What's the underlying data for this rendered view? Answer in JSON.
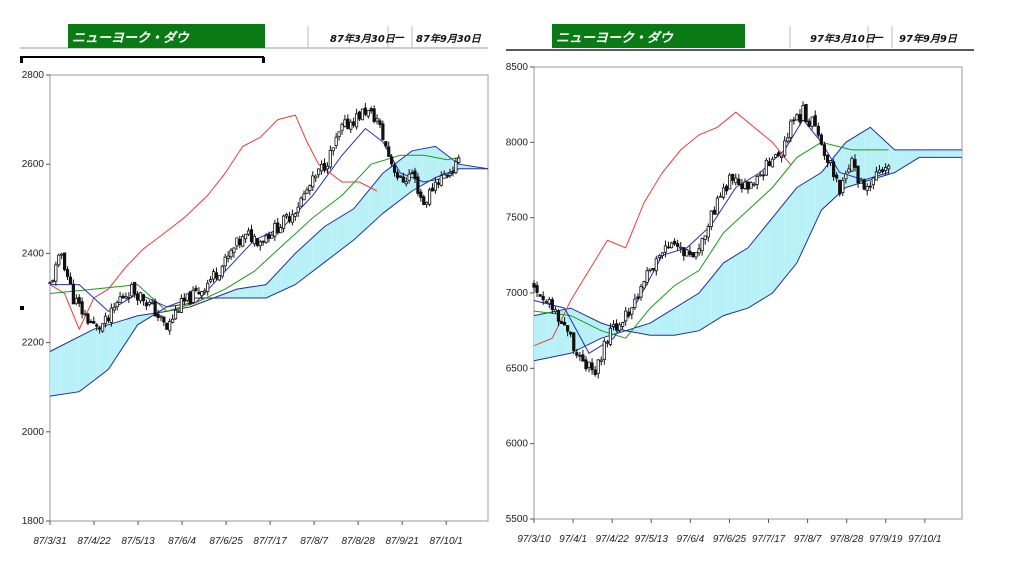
{
  "colors": {
    "tenkan": "#2030c8",
    "kijun": "#1a9a1a",
    "chikou": "#f03a3a",
    "cloud_bull": "#b8f0f8",
    "cloud_bear": "#fff5c0",
    "span_line": "#2030a0",
    "candle": "#111111",
    "header_green": "#0a7a14"
  },
  "chart_data": [
    {
      "type": "candlestick-ichimoku",
      "title": "ニューヨーク・ダウ",
      "date_from": "87年3月30日",
      "date_sep": "—",
      "date_to": "87年9月30日",
      "ylim": [
        1800,
        2800
      ],
      "yticks": [
        1800,
        2000,
        2200,
        2400,
        2600,
        2800
      ],
      "xticks": [
        "87/3/31",
        "87/4/22",
        "87/5/13",
        "87/6/4",
        "87/6/25",
        "87/7/17",
        "87/8/7",
        "87/8/28",
        "87/9/21",
        "87/10/1"
      ],
      "close_path": [
        [
          0,
          2330
        ],
        [
          4,
          2400
        ],
        [
          8,
          2300
        ],
        [
          12,
          2260
        ],
        [
          16,
          2230
        ],
        [
          20,
          2250
        ],
        [
          24,
          2300
        ],
        [
          28,
          2320
        ],
        [
          32,
          2300
        ],
        [
          36,
          2270
        ],
        [
          40,
          2230
        ],
        [
          44,
          2280
        ],
        [
          48,
          2300
        ],
        [
          52,
          2320
        ],
        [
          56,
          2350
        ],
        [
          60,
          2380
        ],
        [
          64,
          2420
        ],
        [
          68,
          2440
        ],
        [
          72,
          2430
        ],
        [
          76,
          2450
        ],
        [
          80,
          2470
        ],
        [
          84,
          2500
        ],
        [
          88,
          2540
        ],
        [
          92,
          2580
        ],
        [
          96,
          2620
        ],
        [
          100,
          2680
        ],
        [
          104,
          2700
        ],
        [
          108,
          2720
        ],
        [
          112,
          2700
        ],
        [
          116,
          2620
        ],
        [
          120,
          2560
        ],
        [
          124,
          2580
        ],
        [
          128,
          2510
        ],
        [
          132,
          2560
        ],
        [
          136,
          2580
        ],
        [
          140,
          2600
        ]
      ],
      "tenkan": [
        [
          0,
          2330
        ],
        [
          10,
          2330
        ],
        [
          20,
          2270
        ],
        [
          30,
          2310
        ],
        [
          40,
          2280
        ],
        [
          50,
          2290
        ],
        [
          60,
          2360
        ],
        [
          70,
          2430
        ],
        [
          80,
          2460
        ],
        [
          90,
          2530
        ],
        [
          100,
          2620
        ],
        [
          108,
          2680
        ],
        [
          114,
          2650
        ],
        [
          120,
          2580
        ],
        [
          128,
          2560
        ],
        [
          136,
          2570
        ],
        [
          140,
          2590
        ]
      ],
      "kijun": [
        [
          0,
          2310
        ],
        [
          15,
          2320
        ],
        [
          30,
          2330
        ],
        [
          40,
          2270
        ],
        [
          50,
          2290
        ],
        [
          60,
          2320
        ],
        [
          70,
          2360
        ],
        [
          80,
          2420
        ],
        [
          90,
          2480
        ],
        [
          100,
          2530
        ],
        [
          110,
          2600
        ],
        [
          120,
          2620
        ],
        [
          128,
          2620
        ],
        [
          136,
          2610
        ],
        [
          140,
          2615
        ]
      ],
      "chikou": [
        [
          0,
          2330
        ],
        [
          5,
          2310
        ],
        [
          10,
          2230
        ],
        [
          15,
          2300
        ],
        [
          20,
          2320
        ],
        [
          26,
          2370
        ],
        [
          32,
          2410
        ],
        [
          38,
          2440
        ],
        [
          46,
          2480
        ],
        [
          54,
          2530
        ],
        [
          60,
          2580
        ],
        [
          66,
          2640
        ],
        [
          72,
          2660
        ],
        [
          78,
          2700
        ],
        [
          84,
          2710
        ],
        [
          88,
          2650
        ],
        [
          92,
          2600
        ],
        [
          96,
          2580
        ],
        [
          100,
          2560
        ],
        [
          106,
          2560
        ],
        [
          112,
          2540
        ]
      ],
      "span_a": [
        [
          0,
          2180
        ],
        [
          15,
          2230
        ],
        [
          30,
          2260
        ],
        [
          40,
          2270
        ],
        [
          48,
          2280
        ],
        [
          56,
          2300
        ],
        [
          64,
          2320
        ],
        [
          74,
          2330
        ],
        [
          84,
          2400
        ],
        [
          94,
          2460
        ],
        [
          104,
          2500
        ],
        [
          114,
          2580
        ],
        [
          124,
          2630
        ],
        [
          132,
          2640
        ],
        [
          140,
          2600
        ],
        [
          150,
          2590
        ]
      ],
      "span_b": [
        [
          0,
          2080
        ],
        [
          10,
          2090
        ],
        [
          20,
          2140
        ],
        [
          30,
          2240
        ],
        [
          40,
          2280
        ],
        [
          48,
          2300
        ],
        [
          56,
          2300
        ],
        [
          64,
          2300
        ],
        [
          74,
          2300
        ],
        [
          84,
          2330
        ],
        [
          94,
          2380
        ],
        [
          104,
          2430
        ],
        [
          114,
          2490
        ],
        [
          124,
          2540
        ],
        [
          132,
          2570
        ],
        [
          140,
          2590
        ],
        [
          150,
          2590
        ]
      ],
      "n_days": 150
    },
    {
      "type": "candlestick-ichimoku",
      "title": "ニューヨーク・ダウ",
      "date_from": "97年3月10日",
      "date_sep": "—",
      "date_to": "97年9月9日",
      "ylim": [
        5500,
        8500
      ],
      "yticks": [
        5500,
        6000,
        6500,
        7000,
        7500,
        8000,
        8500
      ],
      "xticks": [
        "97/3/10",
        "97/4/1",
        "97/4/22",
        "97/5/13",
        "97/6/4",
        "97/6/25",
        "97/7/17",
        "97/8/7",
        "97/8/28",
        "97/9/19",
        "97/10/1"
      ],
      "close_path": [
        [
          0,
          7050
        ],
        [
          4,
          6950
        ],
        [
          8,
          6850
        ],
        [
          12,
          6700
        ],
        [
          16,
          6550
        ],
        [
          20,
          6450
        ],
        [
          24,
          6700
        ],
        [
          28,
          6800
        ],
        [
          32,
          6900
        ],
        [
          36,
          7100
        ],
        [
          40,
          7200
        ],
        [
          44,
          7300
        ],
        [
          48,
          7300
        ],
        [
          52,
          7250
        ],
        [
          56,
          7400
        ],
        [
          60,
          7600
        ],
        [
          64,
          7750
        ],
        [
          68,
          7700
        ],
        [
          72,
          7700
        ],
        [
          76,
          7850
        ],
        [
          80,
          7900
        ],
        [
          84,
          8100
        ],
        [
          88,
          8200
        ],
        [
          92,
          8100
        ],
        [
          96,
          7900
        ],
        [
          100,
          7700
        ],
        [
          104,
          7850
        ],
        [
          108,
          7650
        ],
        [
          112,
          7800
        ],
        [
          116,
          7850
        ]
      ],
      "tenkan": [
        [
          0,
          6950
        ],
        [
          10,
          6900
        ],
        [
          18,
          6600
        ],
        [
          26,
          6700
        ],
        [
          34,
          6950
        ],
        [
          42,
          7250
        ],
        [
          50,
          7300
        ],
        [
          58,
          7450
        ],
        [
          66,
          7700
        ],
        [
          74,
          7800
        ],
        [
          82,
          7950
        ],
        [
          88,
          8150
        ],
        [
          94,
          8000
        ],
        [
          100,
          7800
        ],
        [
          108,
          7750
        ],
        [
          116,
          7800
        ]
      ],
      "kijun": [
        [
          0,
          6880
        ],
        [
          12,
          6850
        ],
        [
          22,
          6750
        ],
        [
          30,
          6700
        ],
        [
          38,
          6900
        ],
        [
          46,
          7050
        ],
        [
          54,
          7150
        ],
        [
          62,
          7400
        ],
        [
          70,
          7550
        ],
        [
          78,
          7700
        ],
        [
          86,
          7900
        ],
        [
          94,
          8000
        ],
        [
          104,
          7950
        ],
        [
          116,
          7950
        ]
      ],
      "chikou": [
        [
          0,
          6650
        ],
        [
          6,
          6700
        ],
        [
          12,
          6950
        ],
        [
          18,
          7150
        ],
        [
          24,
          7350
        ],
        [
          30,
          7300
        ],
        [
          36,
          7600
        ],
        [
          42,
          7800
        ],
        [
          48,
          7950
        ],
        [
          54,
          8050
        ],
        [
          60,
          8100
        ],
        [
          66,
          8200
        ],
        [
          72,
          8100
        ],
        [
          78,
          8000
        ],
        [
          84,
          7850
        ]
      ],
      "span_a": [
        [
          0,
          6850
        ],
        [
          12,
          6900
        ],
        [
          22,
          6800
        ],
        [
          30,
          6750
        ],
        [
          38,
          6800
        ],
        [
          46,
          6900
        ],
        [
          54,
          7000
        ],
        [
          62,
          7200
        ],
        [
          70,
          7300
        ],
        [
          78,
          7500
        ],
        [
          86,
          7700
        ],
        [
          94,
          7800
        ],
        [
          102,
          8000
        ],
        [
          110,
          8100
        ],
        [
          118,
          7950
        ],
        [
          126,
          7950
        ],
        [
          140,
          7950
        ]
      ],
      "span_b": [
        [
          0,
          6550
        ],
        [
          12,
          6600
        ],
        [
          22,
          6700
        ],
        [
          30,
          6750
        ],
        [
          38,
          6720
        ],
        [
          46,
          6720
        ],
        [
          54,
          6750
        ],
        [
          62,
          6850
        ],
        [
          70,
          6900
        ],
        [
          78,
          7000
        ],
        [
          86,
          7200
        ],
        [
          94,
          7550
        ],
        [
          102,
          7700
        ],
        [
          110,
          7750
        ],
        [
          118,
          7800
        ],
        [
          126,
          7900
        ],
        [
          140,
          7900
        ]
      ],
      "n_days": 140
    }
  ]
}
